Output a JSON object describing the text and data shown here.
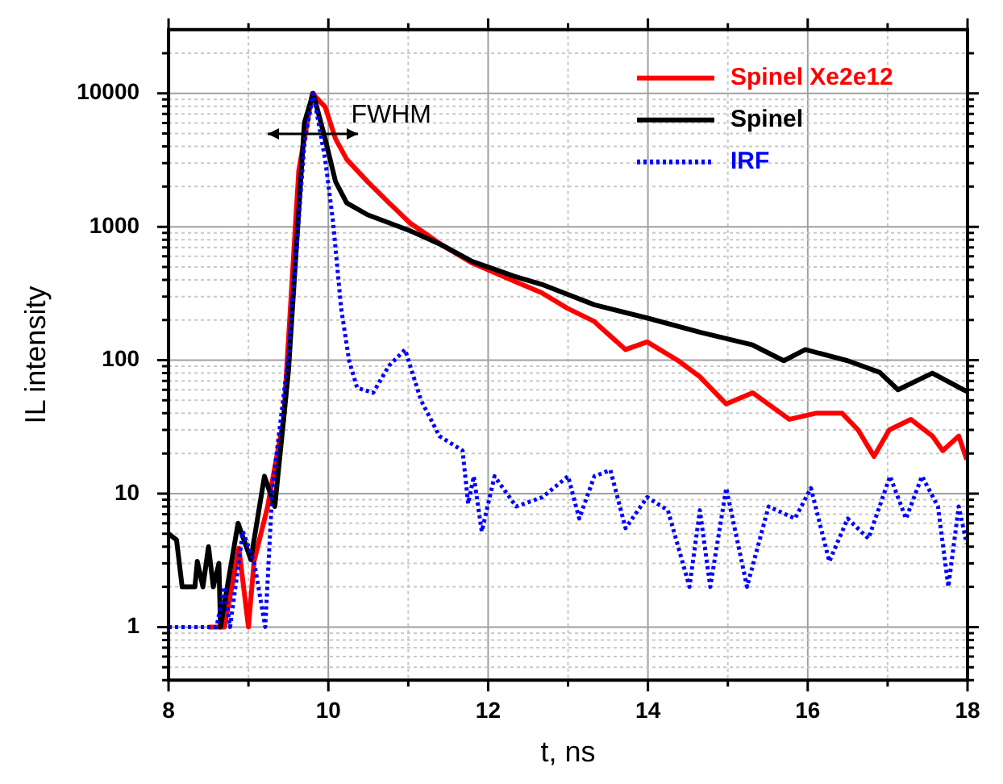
{
  "chart_data": {
    "type": "line",
    "xlabel": "t, ns",
    "ylabel": "IL intensity",
    "log": "y",
    "grid": true,
    "legend": "top right",
    "marker": "none",
    "xlim": [
      8,
      18
    ],
    "xticks": [
      8,
      {
        "value": 9,
        "label": null
      },
      10,
      {
        "value": 11,
        "label": null
      },
      12,
      {
        "value": 13,
        "label": null
      },
      14,
      {
        "value": 15,
        "label": null
      },
      16,
      {
        "value": 17,
        "label": null
      },
      18
    ],
    "ylim": [
      0.4,
      30000
    ],
    "yticks": [
      {
        "value": 0.4,
        "label": null
      },
      {
        "value": 0.5,
        "label": null
      },
      {
        "value": 0.6,
        "label": null
      },
      {
        "value": 0.7,
        "label": null
      },
      {
        "value": 0.8,
        "label": null
      },
      {
        "value": 0.9,
        "label": null
      },
      1,
      {
        "value": 2,
        "label": null
      },
      {
        "value": 3,
        "label": null
      },
      {
        "value": 4,
        "label": null
      },
      {
        "value": 5,
        "label": null
      },
      {
        "value": 6,
        "label": null
      },
      {
        "value": 7,
        "label": null
      },
      {
        "value": 8,
        "label": null
      },
      {
        "value": 9,
        "label": null
      },
      10,
      {
        "value": 20,
        "label": null
      },
      {
        "value": 30,
        "label": null
      },
      {
        "value": 40,
        "label": null
      },
      {
        "value": 50,
        "label": null
      },
      {
        "value": 60,
        "label": null
      },
      {
        "value": 70,
        "label": null
      },
      {
        "value": 80,
        "label": null
      },
      {
        "value": 90,
        "label": null
      },
      100,
      {
        "value": 200,
        "label": null
      },
      {
        "value": 300,
        "label": null
      },
      {
        "value": 400,
        "label": null
      },
      {
        "value": 500,
        "label": null
      },
      {
        "value": 600,
        "label": null
      },
      {
        "value": 700,
        "label": null
      },
      {
        "value": 800,
        "label": null
      },
      {
        "value": 900,
        "label": null
      },
      1000,
      {
        "value": 2000,
        "label": null
      },
      {
        "value": 3000,
        "label": null
      },
      {
        "value": 4000,
        "label": null
      },
      {
        "value": 5000,
        "label": null
      },
      {
        "value": 6000,
        "label": null
      },
      {
        "value": 7000,
        "label": null
      },
      {
        "value": 8000,
        "label": null
      },
      {
        "value": 9000,
        "label": null
      },
      10000,
      {
        "value": 20000,
        "label": null
      }
    ],
    "annotations": [
      {
        "text": "FWHM",
        "x": 9.8,
        "y": 5000
      }
    ],
    "series": [
      {
        "name": "Spinel Xe2e12",
        "color": "#ff0000",
        "line_style": "solid",
        "x": [
          8.5,
          8.6,
          8.7,
          8.88,
          9.0,
          9.07,
          9.24,
          9.44,
          9.63,
          9.8,
          9.96,
          10.09,
          10.23,
          10.49,
          10.76,
          11.02,
          11.42,
          11.8,
          12.33,
          12.67,
          12.99,
          13.33,
          13.39,
          13.72,
          13.99,
          14.38,
          14.65,
          14.98,
          15.31,
          15.77,
          16.1,
          16.43,
          16.63,
          16.83,
          17.02,
          17.29,
          17.56,
          17.69,
          17.89,
          17.99
        ],
        "values": [
          1,
          1,
          1,
          3.9,
          1,
          3.1,
          8,
          36,
          2650,
          10000,
          7900,
          4560,
          3200,
          2180,
          1510,
          1070,
          730,
          535,
          390,
          320,
          245,
          195,
          180,
          120,
          137,
          99,
          75,
          47,
          57,
          36,
          40,
          40,
          30,
          19,
          30,
          36,
          27,
          21,
          27,
          18
        ]
      },
      {
        "name": "Spinel",
        "color": "#000000",
        "line_style": "solid",
        "x": [
          8.0,
          8.1,
          8.17,
          8.33,
          8.36,
          8.43,
          8.5,
          8.56,
          8.63,
          8.65,
          8.87,
          9.03,
          9.2,
          9.33,
          9.5,
          9.7,
          9.81,
          9.96,
          10.09,
          10.23,
          10.49,
          11.02,
          11.42,
          11.8,
          12.33,
          12.67,
          13.33,
          13.99,
          14.65,
          15.31,
          15.7,
          15.97,
          16.5,
          16.9,
          17.13,
          17.56,
          17.95,
          18.0
        ],
        "values": [
          5,
          4.5,
          2,
          2,
          3.1,
          2,
          4,
          2,
          3,
          1,
          6,
          3.2,
          13.5,
          8,
          82,
          6000,
          10000,
          4560,
          2180,
          1510,
          1230,
          935,
          730,
          550,
          425,
          370,
          260,
          207,
          162,
          130,
          99,
          120,
          99,
          81,
          60,
          80,
          60,
          58
        ]
      },
      {
        "name": "IRF",
        "color": "#0000ff",
        "line_style": "dotted",
        "x": [
          8.0,
          8.4,
          8.6,
          8.7,
          8.77,
          8.93,
          9.07,
          9.21,
          9.3,
          9.5,
          9.7,
          9.81,
          9.96,
          10.06,
          10.16,
          10.26,
          10.36,
          10.56,
          10.76,
          10.96,
          11.16,
          11.39,
          11.68,
          11.75,
          11.82,
          11.92,
          12.08,
          12.35,
          12.68,
          13.0,
          13.14,
          13.33,
          13.53,
          13.72,
          13.99,
          14.25,
          14.52,
          14.65,
          14.78,
          14.98,
          15.24,
          15.51,
          15.84,
          16.04,
          16.27,
          16.5,
          16.76,
          17.03,
          17.23,
          17.43,
          17.63,
          17.76,
          17.89,
          17.99
        ],
        "values": [
          1,
          1,
          1,
          2,
          1,
          5.2,
          3.1,
          1,
          11,
          107,
          4200,
          10000,
          3200,
          1070,
          245,
          99,
          62,
          57,
          91,
          120,
          50,
          27,
          21,
          8.4,
          13.5,
          5.2,
          13.5,
          8,
          9.4,
          13.5,
          6.5,
          13.5,
          15,
          5.5,
          9.4,
          7.5,
          2,
          7.5,
          2,
          11,
          2,
          8,
          6.5,
          11,
          3.1,
          6.5,
          4.6,
          13.5,
          6.5,
          13.5,
          8,
          2,
          8,
          4.2
        ]
      }
    ]
  }
}
